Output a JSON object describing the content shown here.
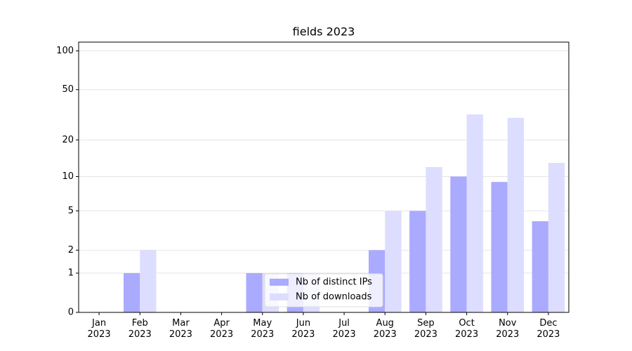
{
  "chart_data": {
    "type": "bar",
    "title": "fields 2023",
    "categories": [
      "Jan 2023",
      "Feb 2023",
      "Mar 2023",
      "Apr 2023",
      "May 2023",
      "Jun 2023",
      "Jul 2023",
      "Aug 2023",
      "Sep 2023",
      "Oct 2023",
      "Nov 2023",
      "Dec 2023"
    ],
    "series": [
      {
        "name": "Nb of distinct IPs",
        "color": "#aaaaff",
        "values": [
          0,
          1,
          0,
          0,
          1,
          1,
          0,
          2,
          5,
          10,
          9,
          4
        ]
      },
      {
        "name": "Nb of downloads",
        "color": "#ddddff",
        "values": [
          0,
          2,
          0,
          0,
          1,
          1,
          0,
          5,
          12,
          32,
          30,
          13
        ]
      }
    ],
    "yscale": "symlog",
    "ylim": [
      0,
      117
    ],
    "yticks": [
      0,
      1,
      2,
      5,
      10,
      20,
      50,
      100
    ],
    "grid": true,
    "legend": "lower center"
  }
}
